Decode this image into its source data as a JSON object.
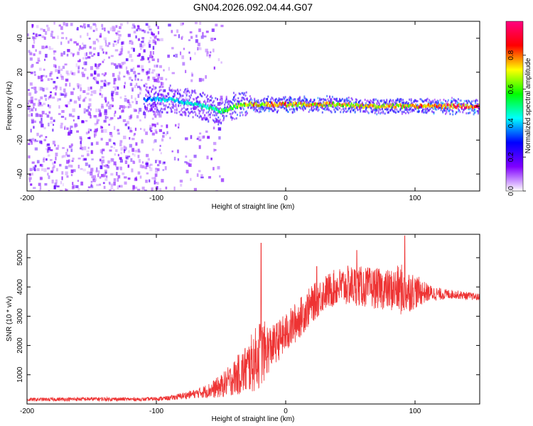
{
  "title": "GN04.2026.092.04.44.G07",
  "chart_data": [
    {
      "type": "heatmap",
      "name": "spectrogram",
      "xlabel": "Height of straight line (km)",
      "ylabel": "Frequency (Hz)",
      "xlim": [
        -200,
        150
      ],
      "ylim": [
        -50,
        50
      ],
      "x_ticks": [
        -200,
        -100,
        0,
        100
      ],
      "y_ticks": [
        -40,
        -20,
        0,
        20,
        40
      ],
      "colorbar": {
        "label": "Normalized spectral amplitude",
        "range": [
          0.0,
          1.0
        ],
        "ticks": [
          0.0,
          0.2,
          0.4,
          0.6,
          0.8
        ],
        "tick_labels": [
          "0.0",
          "0.2",
          "0.4",
          "0.6",
          "0.8"
        ],
        "colors": [
          "#ffffff",
          "#8000ff",
          "#0000ff",
          "#00ffff",
          "#00ff00",
          "#ffff00",
          "#ff0000",
          "#ff0080"
        ]
      },
      "ridge": [
        {
          "x": -110,
          "freq": 4,
          "amp": 0.35
        },
        {
          "x": -90,
          "freq": 4,
          "amp": 0.45
        },
        {
          "x": -70,
          "freq": 1,
          "amp": 0.45
        },
        {
          "x": -50,
          "freq": -3,
          "amp": 0.55
        },
        {
          "x": -35,
          "freq": 1,
          "amp": 0.7
        },
        {
          "x": -20,
          "freq": 1,
          "amp": 0.8
        },
        {
          "x": 0,
          "freq": 1,
          "amp": 0.8
        },
        {
          "x": 20,
          "freq": 1,
          "amp": 0.8
        },
        {
          "x": 40,
          "freq": 1,
          "amp": 0.75
        },
        {
          "x": 60,
          "freq": 0,
          "amp": 0.75
        },
        {
          "x": 80,
          "freq": 0,
          "amp": 0.75
        },
        {
          "x": 100,
          "freq": 0,
          "amp": 0.8
        },
        {
          "x": 120,
          "freq": 0,
          "amp": 0.9
        },
        {
          "x": 150,
          "freq": 0,
          "amp": 0.9
        }
      ],
      "noise_region": {
        "x_from": -200,
        "x_to": -60,
        "amp": 0.15
      }
    },
    {
      "type": "line",
      "name": "snr",
      "xlabel": "Height of straight line (km)",
      "ylabel": "SNR (10 * v/v)",
      "xlim": [
        -200,
        150
      ],
      "ylim": [
        0,
        5800
      ],
      "x_ticks": [
        -200,
        -100,
        0,
        100
      ],
      "y_ticks": [
        1000,
        2000,
        3000,
        4000,
        5000
      ],
      "color": "#ee3333",
      "envelope": {
        "x": [
          -200,
          -150,
          -110,
          -90,
          -70,
          -60,
          -50,
          -40,
          -30,
          -20,
          -10,
          0,
          10,
          20,
          30,
          40,
          50,
          60,
          70,
          80,
          90,
          100,
          110,
          120,
          130,
          150
        ],
        "mean": [
          150,
          170,
          160,
          200,
          350,
          450,
          600,
          900,
          1200,
          1700,
          2000,
          2400,
          2900,
          3400,
          3800,
          4000,
          4050,
          4000,
          3950,
          3900,
          3900,
          3850,
          3800,
          3750,
          3750,
          3650
        ],
        "spread": [
          60,
          70,
          60,
          80,
          150,
          250,
          400,
          600,
          900,
          1200,
          700,
          700,
          700,
          650,
          600,
          650,
          700,
          700,
          700,
          700,
          900,
          600,
          300,
          200,
          150,
          120
        ]
      },
      "peaks": [
        {
          "x": -19,
          "y": 5500
        },
        {
          "x": 55,
          "y": 5250
        },
        {
          "x": 92,
          "y": 5750
        },
        {
          "x": 24,
          "y": 4700
        }
      ]
    }
  ]
}
